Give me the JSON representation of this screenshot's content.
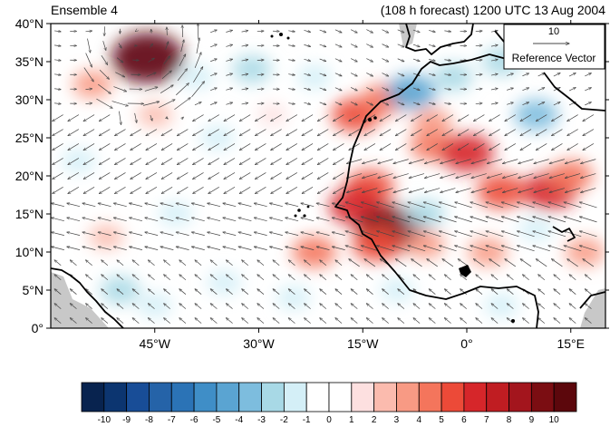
{
  "header": {
    "left_title": "Ensemble 4",
    "right_title": "(108 h forecast) 1200 UTC 13 Aug 2004"
  },
  "map": {
    "lon_range": [
      -60,
      20
    ],
    "lat_range": [
      0,
      40
    ],
    "x_ticks": [
      {
        "value": -45,
        "label": "45°W"
      },
      {
        "value": -30,
        "label": "30°W"
      },
      {
        "value": -15,
        "label": "15°W"
      },
      {
        "value": 0,
        "label": "0°"
      },
      {
        "value": 15,
        "label": "15°E"
      }
    ],
    "y_ticks": [
      {
        "value": 0,
        "label": "0°"
      },
      {
        "value": 5,
        "label": "5°N"
      },
      {
        "value": 10,
        "label": "10°N"
      },
      {
        "value": 15,
        "label": "15°N"
      },
      {
        "value": 20,
        "label": "20°N"
      },
      {
        "value": 25,
        "label": "25°N"
      },
      {
        "value": 30,
        "label": "30°N"
      },
      {
        "value": 35,
        "label": "35°N"
      },
      {
        "value": 40,
        "label": "40°N"
      }
    ],
    "coastline_color": "#000000",
    "land_mask_color": "#c8c8c8",
    "anomalies": [
      {
        "lon": -46,
        "lat": 35.5,
        "value": 10
      },
      {
        "lon": -54,
        "lat": 32,
        "value": 3
      },
      {
        "lon": -45,
        "lat": 28,
        "value": 2
      },
      {
        "lon": -39,
        "lat": 33,
        "value": -2
      },
      {
        "lon": -31,
        "lat": 34,
        "value": -3
      },
      {
        "lon": -22,
        "lat": 33,
        "value": -2
      },
      {
        "lon": -36,
        "lat": 25,
        "value": -2
      },
      {
        "lon": -42,
        "lat": 15,
        "value": -2
      },
      {
        "lon": -28,
        "lat": 28,
        "value": 1
      },
      {
        "lon": -16,
        "lat": 28,
        "value": 5
      },
      {
        "lon": -12,
        "lat": 30,
        "value": 4
      },
      {
        "lon": -8,
        "lat": 31,
        "value": -5
      },
      {
        "lon": -5,
        "lat": 24,
        "value": 4
      },
      {
        "lon": 0,
        "lat": 23,
        "value": 6
      },
      {
        "lon": -5,
        "lat": 27,
        "value": 3
      },
      {
        "lon": -2,
        "lat": 33,
        "value": -3
      },
      {
        "lon": 5,
        "lat": 35,
        "value": -3
      },
      {
        "lon": 10,
        "lat": 28,
        "value": -4
      },
      {
        "lon": 5,
        "lat": 18,
        "value": 5
      },
      {
        "lon": 12,
        "lat": 18,
        "value": 6
      },
      {
        "lon": 15,
        "lat": 20,
        "value": 4
      },
      {
        "lon": -14,
        "lat": 18.5,
        "value": 5
      },
      {
        "lon": -16,
        "lat": 16,
        "value": 6
      },
      {
        "lon": -11,
        "lat": 13,
        "value": 9
      },
      {
        "lon": -13,
        "lat": 11,
        "value": 5
      },
      {
        "lon": -22,
        "lat": 10,
        "value": 4
      },
      {
        "lon": -6,
        "lat": 15,
        "value": -3
      },
      {
        "lon": -6,
        "lat": 11,
        "value": 3
      },
      {
        "lon": 3,
        "lat": 10,
        "value": 3
      },
      {
        "lon": 17,
        "lat": 10,
        "value": 3
      },
      {
        "lon": 10,
        "lat": 13,
        "value": -2
      },
      {
        "lon": -35,
        "lat": 6,
        "value": -2
      },
      {
        "lon": -25,
        "lat": 4,
        "value": -2
      },
      {
        "lon": -10,
        "lat": 5,
        "value": -2
      },
      {
        "lon": 5,
        "lat": 3,
        "value": -2
      },
      {
        "lon": -50,
        "lat": 5,
        "value": -3
      },
      {
        "lon": -45,
        "lat": 3,
        "value": -2
      },
      {
        "lon": -56,
        "lat": 22,
        "value": -2
      },
      {
        "lon": -52,
        "lat": 12,
        "value": 2
      },
      {
        "lon": -28,
        "lat": 18,
        "value": -1
      }
    ]
  },
  "reference_vector": {
    "magnitude_label": "10",
    "label": "Reference Vector"
  },
  "colorbar": {
    "levels": [
      "-10",
      "-9",
      "-8",
      "-7",
      "-6",
      "-5",
      "-4",
      "-3",
      "-2",
      "-1",
      "0",
      "1",
      "2",
      "3",
      "4",
      "5",
      "6",
      "7",
      "8",
      "9",
      "10"
    ],
    "colors": [
      "#08234f",
      "#0c3570",
      "#184d97",
      "#2563a8",
      "#2b73b6",
      "#3f8ec7",
      "#5aa4d2",
      "#7dbdde",
      "#a8d9e6",
      "#d4eff7",
      "#ffffff",
      "#ffffff",
      "#fde0e0",
      "#fbbbae",
      "#f89a84",
      "#f4755c",
      "#ec4a38",
      "#d6262a",
      "#c01d22",
      "#a3151d",
      "#7b0d12",
      "#5c070c"
    ]
  }
}
